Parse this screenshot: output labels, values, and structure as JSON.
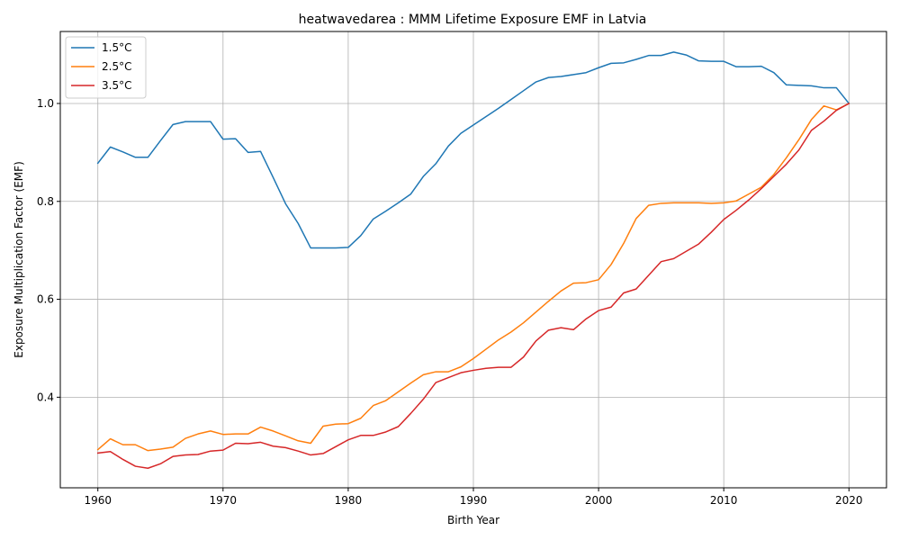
{
  "chart_data": {
    "type": "line",
    "title": "heatwavedarea : MMM Lifetime Exposure EMF in Latvia",
    "xlabel": "Birth Year",
    "ylabel": "Exposure Multiplication Factor (EMF)",
    "xlim": [
      1957,
      2023
    ],
    "ylim": [
      0.215,
      1.147
    ],
    "xticks": [
      1960,
      1970,
      1980,
      1990,
      2000,
      2010,
      2020
    ],
    "yticks": [
      0.4,
      0.6,
      0.8,
      1.0
    ],
    "ytick_labels": [
      "0.4",
      "0.6",
      "0.8",
      "1.0"
    ],
    "grid": true,
    "legend_position": "upper-left",
    "x": [
      1960,
      1961,
      1962,
      1963,
      1964,
      1965,
      1966,
      1967,
      1968,
      1969,
      1970,
      1971,
      1972,
      1973,
      1974,
      1975,
      1976,
      1977,
      1978,
      1979,
      1980,
      1981,
      1982,
      1983,
      1984,
      1985,
      1986,
      1987,
      1988,
      1989,
      1990,
      1991,
      1992,
      1993,
      1994,
      1995,
      1996,
      1997,
      1998,
      1999,
      2000,
      2001,
      2002,
      2003,
      2004,
      2005,
      2006,
      2007,
      2008,
      2009,
      2010,
      2011,
      2012,
      2013,
      2014,
      2015,
      2016,
      2017,
      2018,
      2019,
      2020
    ],
    "series": [
      {
        "name": "1.5°C",
        "color": "#1f77b4",
        "values": [
          0.878,
          0.911,
          0.901,
          0.89,
          0.89,
          0.924,
          0.957,
          0.963,
          0.963,
          0.963,
          0.927,
          0.928,
          0.9,
          0.902,
          0.849,
          0.795,
          0.755,
          0.705,
          0.705,
          0.705,
          0.706,
          0.73,
          0.764,
          0.78,
          0.797,
          0.815,
          0.851,
          0.877,
          0.913,
          0.939,
          0.956,
          0.973,
          0.99,
          1.008,
          1.026,
          1.044,
          1.053,
          1.055,
          1.059,
          1.063,
          1.073,
          1.082,
          1.083,
          1.09,
          1.098,
          1.098,
          1.105,
          1.099,
          1.087,
          1.086,
          1.086,
          1.075,
          1.075,
          1.076,
          1.063,
          1.038,
          1.037,
          1.036,
          1.032,
          1.032,
          1.0
        ]
      },
      {
        "name": "2.5°C",
        "color": "#ff7f0e",
        "values": [
          0.293,
          0.315,
          0.303,
          0.303,
          0.291,
          0.294,
          0.298,
          0.316,
          0.325,
          0.331,
          0.324,
          0.325,
          0.325,
          0.339,
          0.331,
          0.321,
          0.311,
          0.306,
          0.341,
          0.345,
          0.346,
          0.357,
          0.383,
          0.393,
          0.411,
          0.429,
          0.446,
          0.452,
          0.452,
          0.462,
          0.479,
          0.498,
          0.517,
          0.533,
          0.552,
          0.574,
          0.596,
          0.617,
          0.633,
          0.634,
          0.64,
          0.671,
          0.714,
          0.765,
          0.792,
          0.796,
          0.797,
          0.797,
          0.797,
          0.796,
          0.797,
          0.801,
          0.815,
          0.829,
          0.855,
          0.889,
          0.926,
          0.967,
          0.995,
          0.987,
          1.0
        ]
      },
      {
        "name": "3.5°C",
        "color": "#d62728",
        "values": [
          0.286,
          0.289,
          0.273,
          0.259,
          0.255,
          0.264,
          0.279,
          0.282,
          0.283,
          0.29,
          0.292,
          0.306,
          0.305,
          0.308,
          0.3,
          0.297,
          0.29,
          0.282,
          0.285,
          0.299,
          0.313,
          0.322,
          0.322,
          0.329,
          0.34,
          0.367,
          0.396,
          0.43,
          0.44,
          0.45,
          0.455,
          0.459,
          0.461,
          0.461,
          0.482,
          0.515,
          0.537,
          0.542,
          0.538,
          0.56,
          0.577,
          0.584,
          0.613,
          0.621,
          0.649,
          0.677,
          0.683,
          0.698,
          0.713,
          0.737,
          0.763,
          0.782,
          0.803,
          0.826,
          0.851,
          0.876,
          0.905,
          0.945,
          0.964,
          0.986,
          1.0
        ]
      }
    ]
  }
}
